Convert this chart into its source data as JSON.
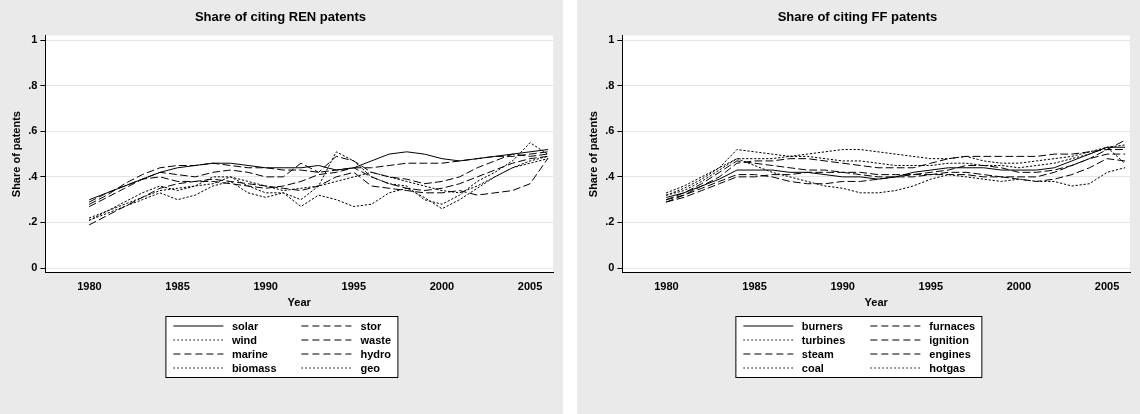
{
  "chart_data": [
    {
      "type": "line",
      "title": "Share of citing REN patents",
      "xlabel": "Year",
      "ylabel": "Share of patents",
      "legend": "bottom",
      "grid": "y",
      "marker": "none",
      "x": [
        1980,
        1981,
        1982,
        1983,
        1984,
        1985,
        1986,
        1987,
        1988,
        1989,
        1990,
        1991,
        1992,
        1993,
        1994,
        1995,
        1996,
        1997,
        1998,
        1999,
        2000,
        2001,
        2002,
        2003,
        2004,
        2005,
        2006
      ],
      "xlim": [
        1977.5,
        2006.3
      ],
      "xticks": [
        1980,
        1985,
        1990,
        1995,
        2000,
        2005
      ],
      "ylim": [
        -0.02,
        1.02
      ],
      "yticks": [
        {
          "value": 0,
          "label": "0"
        },
        {
          "value": 0.2,
          "label": ".2"
        },
        {
          "value": 0.4,
          "label": ".4"
        },
        {
          "value": 0.6,
          "label": ".6"
        },
        {
          "value": 0.8,
          "label": ".8"
        },
        {
          "value": 1,
          "label": "1"
        }
      ],
      "series": [
        {
          "name": "solar",
          "color": "#000000",
          "line_style": "solid",
          "values": [
            0.3,
            0.33,
            0.36,
            0.39,
            0.42,
            0.44,
            0.45,
            0.46,
            0.46,
            0.45,
            0.44,
            0.44,
            0.44,
            0.45,
            0.43,
            0.44,
            0.47,
            0.5,
            0.51,
            0.5,
            0.48,
            0.47,
            0.48,
            0.49,
            0.5,
            0.51,
            0.52
          ]
        },
        {
          "name": "wind",
          "color": "#000000",
          "line_style": "dotted",
          "values": [
            0.22,
            0.25,
            0.28,
            0.31,
            0.34,
            0.35,
            0.36,
            0.37,
            0.4,
            0.38,
            0.36,
            0.34,
            0.35,
            0.36,
            0.38,
            0.4,
            0.42,
            0.4,
            0.38,
            0.36,
            0.34,
            0.33,
            0.36,
            0.4,
            0.44,
            0.47,
            0.49
          ]
        },
        {
          "name": "marine",
          "color": "#000000",
          "line_style": "dashed",
          "values": [
            0.28,
            0.32,
            0.37,
            0.41,
            0.44,
            0.45,
            0.45,
            0.46,
            0.45,
            0.44,
            0.44,
            0.43,
            0.43,
            0.42,
            0.43,
            0.44,
            0.44,
            0.45,
            0.46,
            0.46,
            0.46,
            0.47,
            0.48,
            0.49,
            0.49,
            0.5,
            0.51
          ]
        },
        {
          "name": "biomass",
          "color": "#000000",
          "line_style": "dotted",
          "values": [
            0.21,
            0.24,
            0.27,
            0.3,
            0.33,
            0.3,
            0.32,
            0.36,
            0.38,
            0.33,
            0.31,
            0.33,
            0.27,
            0.32,
            0.3,
            0.27,
            0.28,
            0.33,
            0.35,
            0.31,
            0.26,
            0.3,
            0.35,
            0.4,
            0.44,
            0.46,
            0.48
          ]
        },
        {
          "name": "stor",
          "color": "#000000",
          "line_style": "dashed",
          "values": [
            0.27,
            0.31,
            0.35,
            0.39,
            0.42,
            0.41,
            0.4,
            0.42,
            0.43,
            0.42,
            0.4,
            0.4,
            0.46,
            0.42,
            0.49,
            0.47,
            0.42,
            0.4,
            0.39,
            0.37,
            0.38,
            0.4,
            0.44,
            0.47,
            0.5,
            0.49,
            0.5
          ]
        },
        {
          "name": "waste",
          "color": "#000000",
          "line_style": "dashed",
          "values": [
            0.29,
            0.33,
            0.36,
            0.39,
            0.4,
            0.38,
            0.38,
            0.39,
            0.38,
            0.37,
            0.36,
            0.35,
            0.34,
            0.36,
            0.4,
            0.42,
            0.36,
            0.35,
            0.34,
            0.33,
            0.33,
            0.34,
            0.32,
            0.33,
            0.34,
            0.37,
            0.48
          ]
        },
        {
          "name": "hydro",
          "color": "#000000",
          "line_style": "dashed",
          "values": [
            0.19,
            0.23,
            0.27,
            0.31,
            0.35,
            0.37,
            0.38,
            0.38,
            0.37,
            0.36,
            0.35,
            0.36,
            0.38,
            0.41,
            0.42,
            0.44,
            0.4,
            0.37,
            0.35,
            0.34,
            0.35,
            0.37,
            0.4,
            0.43,
            0.46,
            0.48,
            0.49
          ]
        },
        {
          "name": "geo",
          "color": "#000000",
          "line_style": "dotted",
          "values": [
            0.21,
            0.25,
            0.29,
            0.33,
            0.36,
            0.34,
            0.36,
            0.4,
            0.4,
            0.36,
            0.33,
            0.33,
            0.3,
            0.36,
            0.51,
            0.47,
            0.4,
            0.37,
            0.36,
            0.3,
            0.28,
            0.32,
            0.38,
            0.42,
            0.47,
            0.55,
            0.5
          ]
        }
      ]
    },
    {
      "type": "line",
      "title": "Share of citing FF patents",
      "xlabel": "Year",
      "ylabel": "Share of patents",
      "legend": "bottom",
      "grid": "y",
      "marker": "none",
      "x": [
        1980,
        1981,
        1982,
        1983,
        1984,
        1985,
        1986,
        1987,
        1988,
        1989,
        1990,
        1991,
        1992,
        1993,
        1994,
        1995,
        1996,
        1997,
        1998,
        1999,
        2000,
        2001,
        2002,
        2003,
        2004,
        2005,
        2006
      ],
      "xlim": [
        1977.5,
        2006.3
      ],
      "xticks": [
        1980,
        1985,
        1990,
        1995,
        2000,
        2005
      ],
      "ylim": [
        -0.02,
        1.02
      ],
      "yticks": [
        {
          "value": 0,
          "label": "0"
        },
        {
          "value": 0.2,
          "label": ".2"
        },
        {
          "value": 0.4,
          "label": ".4"
        },
        {
          "value": 0.6,
          "label": ".6"
        },
        {
          "value": 0.8,
          "label": ".8"
        },
        {
          "value": 1,
          "label": "1"
        }
      ],
      "series": [
        {
          "name": "burners",
          "color": "#000000",
          "line_style": "solid",
          "values": [
            0.31,
            0.33,
            0.36,
            0.39,
            0.43,
            0.43,
            0.43,
            0.42,
            0.42,
            0.41,
            0.4,
            0.4,
            0.39,
            0.4,
            0.42,
            0.43,
            0.44,
            0.44,
            0.44,
            0.43,
            0.43,
            0.43,
            0.44,
            0.47,
            0.5,
            0.53,
            0.53
          ]
        },
        {
          "name": "turbines",
          "color": "#000000",
          "line_style": "dotted",
          "values": [
            0.33,
            0.36,
            0.4,
            0.44,
            0.48,
            0.48,
            0.48,
            0.49,
            0.5,
            0.51,
            0.52,
            0.52,
            0.51,
            0.5,
            0.49,
            0.48,
            0.48,
            0.49,
            0.47,
            0.46,
            0.46,
            0.47,
            0.48,
            0.49,
            0.51,
            0.53,
            0.54
          ]
        },
        {
          "name": "steam",
          "color": "#000000",
          "line_style": "dashed",
          "values": [
            0.29,
            0.31,
            0.34,
            0.37,
            0.4,
            0.4,
            0.41,
            0.41,
            0.42,
            0.42,
            0.42,
            0.42,
            0.41,
            0.41,
            0.41,
            0.42,
            0.43,
            0.45,
            0.45,
            0.44,
            0.42,
            0.42,
            0.43,
            0.45,
            0.48,
            0.52,
            0.56
          ]
        },
        {
          "name": "coal",
          "color": "#000000",
          "line_style": "dotted",
          "values": [
            0.32,
            0.34,
            0.38,
            0.43,
            0.48,
            0.45,
            0.42,
            0.4,
            0.38,
            0.36,
            0.35,
            0.33,
            0.33,
            0.34,
            0.36,
            0.39,
            0.41,
            0.4,
            0.39,
            0.38,
            0.39,
            0.38,
            0.38,
            0.36,
            0.37,
            0.42,
            0.44
          ]
        },
        {
          "name": "furnaces",
          "color": "#000000",
          "line_style": "dashed",
          "values": [
            0.3,
            0.33,
            0.37,
            0.42,
            0.47,
            0.46,
            0.45,
            0.44,
            0.43,
            0.43,
            0.42,
            0.41,
            0.4,
            0.4,
            0.4,
            0.41,
            0.42,
            0.42,
            0.41,
            0.4,
            0.4,
            0.4,
            0.42,
            0.45,
            0.48,
            0.5,
            0.5
          ]
        },
        {
          "name": "ignition",
          "color": "#000000",
          "line_style": "dashed",
          "values": [
            0.29,
            0.32,
            0.36,
            0.4,
            0.46,
            0.47,
            0.47,
            0.48,
            0.48,
            0.47,
            0.46,
            0.45,
            0.44,
            0.44,
            0.44,
            0.46,
            0.48,
            0.49,
            0.49,
            0.49,
            0.49,
            0.49,
            0.5,
            0.5,
            0.51,
            0.52,
            0.52
          ]
        },
        {
          "name": "engines",
          "color": "#000000",
          "line_style": "dashed",
          "values": [
            0.3,
            0.32,
            0.35,
            0.38,
            0.41,
            0.41,
            0.4,
            0.38,
            0.37,
            0.37,
            0.38,
            0.38,
            0.39,
            0.4,
            0.41,
            0.41,
            0.41,
            0.41,
            0.4,
            0.4,
            0.39,
            0.38,
            0.39,
            0.41,
            0.44,
            0.48,
            0.47
          ]
        },
        {
          "name": "hotgas",
          "color": "#000000",
          "line_style": "dotted",
          "values": [
            0.32,
            0.35,
            0.39,
            0.44,
            0.52,
            0.51,
            0.5,
            0.49,
            0.49,
            0.48,
            0.47,
            0.47,
            0.46,
            0.45,
            0.45,
            0.45,
            0.46,
            0.46,
            0.45,
            0.45,
            0.44,
            0.45,
            0.46,
            0.48,
            0.5,
            0.53,
            0.46
          ]
        }
      ]
    }
  ]
}
